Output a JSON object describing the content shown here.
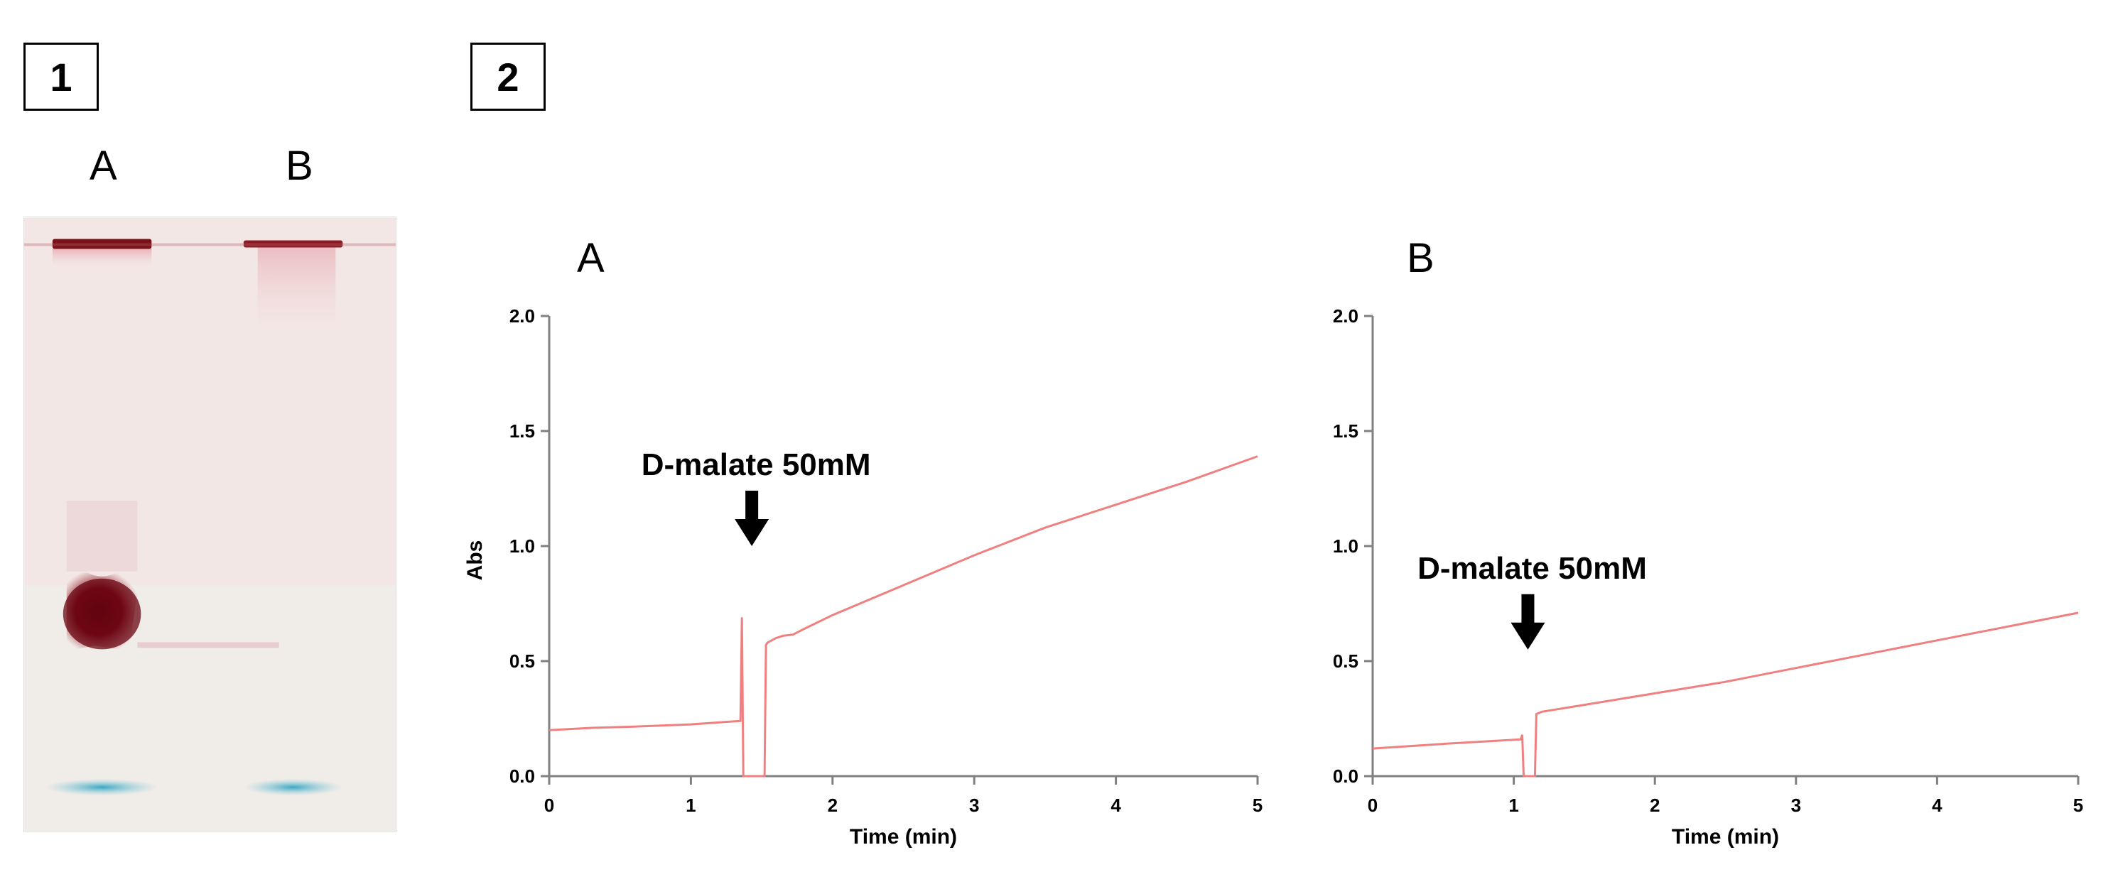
{
  "panels": {
    "panel1_label": "1",
    "panel2_label": "2"
  },
  "gel": {
    "lanes": [
      "A",
      "B"
    ],
    "colors": {
      "background": "#f3e7e5",
      "stain": "#6e0a14",
      "dye_front": "#4fb2c8"
    }
  },
  "chart_data": [
    {
      "type": "line",
      "panel": "A",
      "xlabel": "Time (min)",
      "ylabel": "Abs",
      "xlim": [
        0,
        5
      ],
      "ylim": [
        0,
        2.0
      ],
      "x_ticks": [
        "0",
        "1",
        "2",
        "3",
        "4",
        "5"
      ],
      "y_ticks": [
        "0.0",
        "0.5",
        "1.0",
        "1.5",
        "2.0"
      ],
      "annotation": {
        "text": "D-malate 50mM",
        "x": 1.43,
        "y": 1.0
      },
      "series": [
        {
          "color": "#f08080",
          "x": [
            0,
            0.3,
            0.6,
            1.0,
            1.35,
            1.36,
            1.37,
            1.52,
            1.53,
            1.54,
            1.6,
            1.65,
            1.72,
            1.8,
            2.0,
            2.5,
            3.0,
            3.5,
            4.0,
            4.5,
            5.0
          ],
          "y": [
            0.2,
            0.21,
            0.215,
            0.225,
            0.24,
            0.69,
            0.0,
            0.0,
            0.57,
            0.58,
            0.6,
            0.61,
            0.615,
            0.64,
            0.7,
            0.83,
            0.96,
            1.08,
            1.18,
            1.28,
            1.39
          ]
        }
      ]
    },
    {
      "type": "line",
      "panel": "B",
      "xlabel": "Time (min)",
      "ylabel": "",
      "xlim": [
        0,
        5
      ],
      "ylim": [
        0,
        2.0
      ],
      "x_ticks": [
        "0",
        "1",
        "2",
        "3",
        "4",
        "5"
      ],
      "y_ticks": [
        "0.0",
        "0.5",
        "1.0",
        "1.5",
        "2.0"
      ],
      "annotation": {
        "text": "D-malate 50mM",
        "x": 1.1,
        "y": 0.55
      },
      "series": [
        {
          "color": "#f08080",
          "x": [
            0,
            0.5,
            1.05,
            1.06,
            1.07,
            1.15,
            1.16,
            1.2,
            1.5,
            2.0,
            2.5,
            3.0,
            3.5,
            4.0,
            4.5,
            5.0
          ],
          "y": [
            0.12,
            0.14,
            0.16,
            0.18,
            0.0,
            0.0,
            0.27,
            0.28,
            0.31,
            0.36,
            0.41,
            0.47,
            0.53,
            0.59,
            0.65,
            0.71
          ]
        }
      ]
    }
  ]
}
